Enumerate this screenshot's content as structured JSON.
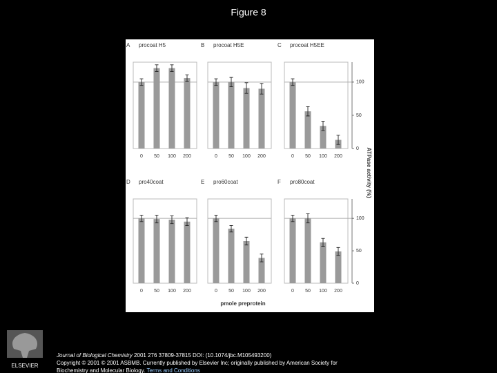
{
  "slide_title": "Figure 8",
  "figure": {
    "y_axis_label": "ATPase activity (%)",
    "x_axis_label": "pmole preprotein"
  },
  "chart_data": [
    {
      "type": "bar",
      "panel": "A",
      "title": "procoat H5",
      "categories": [
        "0",
        "50",
        "100",
        "200"
      ],
      "values": [
        100,
        121,
        121,
        106
      ],
      "errors": [
        5,
        5,
        5,
        5
      ],
      "color": "#9a9a9a",
      "ylim": [
        0,
        130
      ],
      "reference_line": 100
    },
    {
      "type": "bar",
      "panel": "B",
      "title": "procoat H5E",
      "categories": [
        "0",
        "50",
        "100",
        "200"
      ],
      "values": [
        100,
        100,
        91,
        90
      ],
      "errors": [
        5,
        7,
        8,
        8
      ],
      "color": "#9a9a9a",
      "ylim": [
        0,
        130
      ],
      "reference_line": 100
    },
    {
      "type": "bar",
      "panel": "C",
      "title": "procoat H5EE",
      "categories": [
        "0",
        "50",
        "100",
        "200"
      ],
      "values": [
        100,
        56,
        34,
        13
      ],
      "errors": [
        5,
        7,
        7,
        7
      ],
      "color": "#9a9a9a",
      "ylim": [
        0,
        130
      ],
      "yticks": [
        0,
        50,
        100
      ],
      "reference_line": 100
    },
    {
      "type": "bar",
      "panel": "D",
      "title": "pro40coat",
      "categories": [
        "0",
        "50",
        "100",
        "200"
      ],
      "values": [
        100,
        99,
        98,
        95
      ],
      "errors": [
        5,
        6,
        6,
        6
      ],
      "color": "#9a9a9a",
      "ylim": [
        0,
        130
      ],
      "reference_line": 100
    },
    {
      "type": "bar",
      "panel": "E",
      "title": "pro60coat",
      "categories": [
        "0",
        "50",
        "100",
        "200"
      ],
      "values": [
        100,
        84,
        65,
        39
      ],
      "errors": [
        5,
        5,
        6,
        6
      ],
      "color": "#9a9a9a",
      "ylim": [
        0,
        130
      ],
      "reference_line": 100
    },
    {
      "type": "bar",
      "panel": "F",
      "title": "pro80coat",
      "categories": [
        "0",
        "50",
        "100",
        "200"
      ],
      "values": [
        100,
        100,
        63,
        49
      ],
      "errors": [
        5,
        7,
        6,
        6
      ],
      "color": "#9a9a9a",
      "ylim": [
        0,
        130
      ],
      "yticks": [
        0,
        50,
        100
      ],
      "reference_line": 100
    }
  ],
  "footer": {
    "journal": "Journal of Biological Chemistry",
    "citation": " 2001 276 37809-37815 DOI: (10.1074/jbc.M105493200)",
    "copyright": "Copyright © 2001 © 2001 ASBMB. Currently published by Elsevier Inc; originally published by American Society for Biochemistry and Molecular Biology.",
    "link": "Terms and Conditions",
    "logo": "ELSEVIER"
  }
}
